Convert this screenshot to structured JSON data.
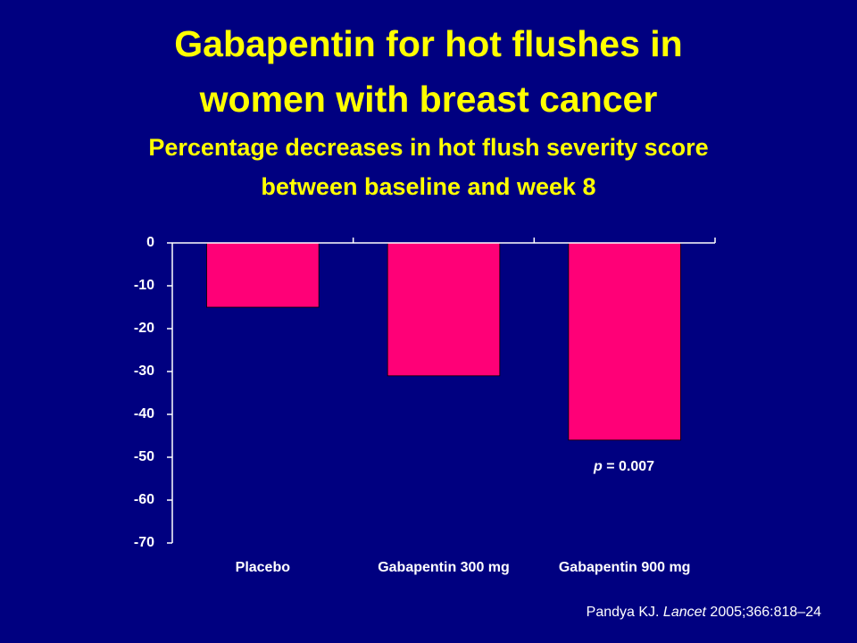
{
  "chart_data": {
    "type": "bar",
    "title": [
      "Gabapentin for hot flushes in",
      "women with breast cancer"
    ],
    "subtitle": [
      "Percentage decreases in hot flush severity score",
      "between baseline and week 8"
    ],
    "categories": [
      "Placebo",
      "Gabapentin 300 mg",
      "Gabapentin 900 mg"
    ],
    "values": [
      -15,
      -31,
      -46
    ],
    "color": "#ff0077",
    "ylim": [
      -70,
      0
    ],
    "yticks": [
      0,
      -10,
      -20,
      -30,
      -40,
      -50,
      -60,
      -70
    ],
    "annotation": [
      "p",
      "= 0.007"
    ],
    "citation": [
      "Pandya KJ.",
      "Lancet",
      "2005;366:818–24"
    ]
  }
}
